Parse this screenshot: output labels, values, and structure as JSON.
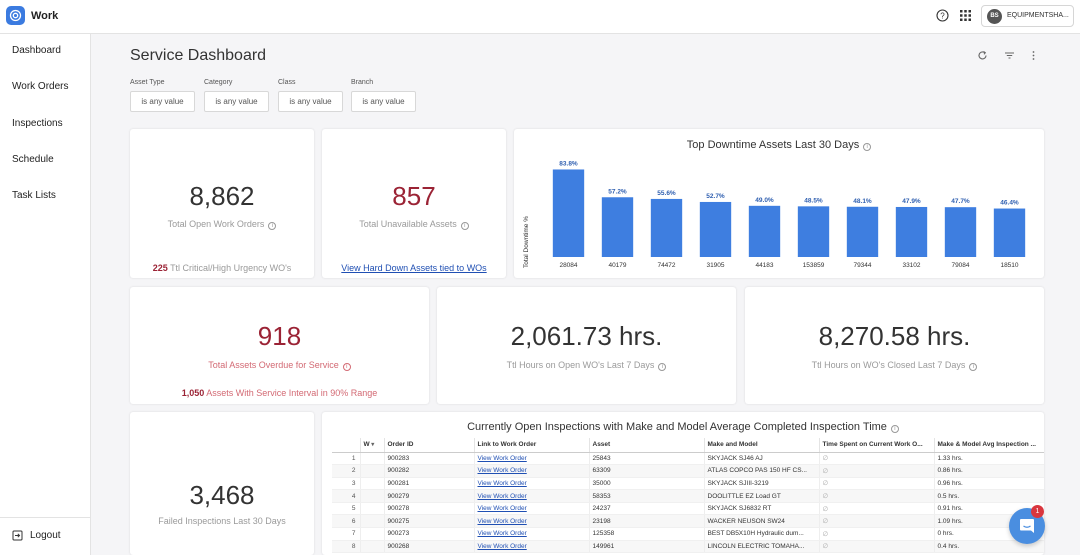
{
  "app": {
    "name": "Work"
  },
  "account": {
    "initials": "BS",
    "name": "EQUIPMENTSHA..."
  },
  "sidebar": {
    "items": [
      {
        "label": "Dashboard"
      },
      {
        "label": "Work Orders"
      },
      {
        "label": "Inspections"
      },
      {
        "label": "Schedule"
      },
      {
        "label": "Task Lists"
      }
    ],
    "logout": "Logout"
  },
  "page": {
    "title": "Service Dashboard"
  },
  "filters": [
    {
      "label": "Asset Type",
      "value": "is any value"
    },
    {
      "label": "Category",
      "value": "is any value"
    },
    {
      "label": "Class",
      "value": "is any value"
    },
    {
      "label": "Branch",
      "value": "is any value"
    }
  ],
  "cards": {
    "open_wo": {
      "value": "8,862",
      "label": "Total Open Work Orders",
      "sub_count": "225",
      "sub_text": "Ttl Critical/High Urgency WO's"
    },
    "unavailable": {
      "value": "857",
      "label": "Total Unavailable Assets",
      "link": "View Hard Down Assets tied to WOs"
    },
    "overdue": {
      "value": "918",
      "label": "Total Assets Overdue for Service",
      "sub_count": "1,050",
      "sub_text": "Assets With Service Interval in 90% Range"
    },
    "hours_open": {
      "value": "2,061.73 hrs.",
      "label": "Ttl Hours on Open WO's Last 7 Days"
    },
    "hours_closed": {
      "value": "8,270.58 hrs.",
      "label": "Ttl Hours on WO's Closed Last 7 Days"
    },
    "failed": {
      "value": "3,468",
      "label": "Failed Inspections Last 30 Days"
    }
  },
  "chart_data": {
    "type": "bar",
    "title": "Top Downtime Assets Last 30 Days",
    "ylabel": "Total Downtime %",
    "xlabel": "",
    "categories": [
      "28084",
      "40179",
      "74472",
      "31905",
      "44183",
      "153859",
      "79344",
      "33102",
      "79084",
      "18510"
    ],
    "values": [
      83.8,
      57.2,
      55.6,
      52.7,
      49.0,
      48.5,
      48.1,
      47.9,
      47.7,
      46.4
    ],
    "data_labels": [
      "83.8%",
      "57.2%",
      "55.6%",
      "52.7%",
      "49.0%",
      "48.5%",
      "48.1%",
      "47.9%",
      "47.7%",
      "46.4%"
    ],
    "ylim": [
      0,
      90
    ],
    "color": "#3e7ee0"
  },
  "table": {
    "title": "Currently Open Inspections with Make and Model Average Completed Inspection Time",
    "columns": [
      "W",
      "Order ID",
      "Link to Work Order",
      "Asset",
      "Make and Model",
      "Time Spent on Current Work O...",
      "Make & Model Avg Inspection ..."
    ],
    "rows": [
      {
        "n": "1",
        "order": "900283",
        "link": "View Work Order",
        "asset": "25843",
        "model": "SKYJACK SJ46 AJ",
        "avg": "1.33 hrs."
      },
      {
        "n": "2",
        "order": "900282",
        "link": "View Work Order",
        "asset": "63309",
        "model": "ATLAS COPCO PAS 150 HF CS...",
        "avg": "0.86 hrs."
      },
      {
        "n": "3",
        "order": "900281",
        "link": "View Work Order",
        "asset": "35000",
        "model": "SKYJACK SJIII-3219",
        "avg": "0.96 hrs."
      },
      {
        "n": "4",
        "order": "900279",
        "link": "View Work Order",
        "asset": "58353",
        "model": "DOOLITTLE EZ Load GT",
        "avg": "0.5 hrs."
      },
      {
        "n": "5",
        "order": "900278",
        "link": "View Work Order",
        "asset": "24237",
        "model": "SKYJACK SJ6832 RT",
        "avg": "0.91 hrs."
      },
      {
        "n": "6",
        "order": "900275",
        "link": "View Work Order",
        "asset": "23198",
        "model": "WACKER NEUSON SW24",
        "avg": "1.09 hrs."
      },
      {
        "n": "7",
        "order": "900273",
        "link": "View Work Order",
        "asset": "125358",
        "model": "BEST DB5X10H Hydraulic dum...",
        "avg": "0 hrs."
      },
      {
        "n": "8",
        "order": "900268",
        "link": "View Work Order",
        "asset": "149961",
        "model": "LINCOLN ELECTRIC TOMAHA...",
        "avg": "0.4 hrs."
      }
    ]
  },
  "chat": {
    "badge": "1"
  }
}
